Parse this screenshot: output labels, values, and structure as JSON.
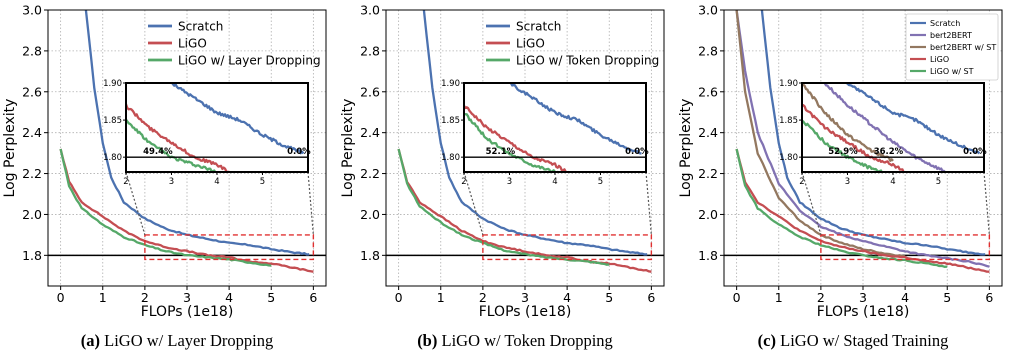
{
  "chart_data": [
    {
      "type": "line",
      "caption_letter": "(a)",
      "caption_text": "LiGO w/ Layer Dropping",
      "xlabel": "FLOPs (1e18)",
      "ylabel": "Log Perplexity",
      "xlim": [
        -0.3,
        6.3
      ],
      "ylim": [
        1.65,
        3.0
      ],
      "xticks": [
        "0",
        "1",
        "2",
        "3",
        "4",
        "5",
        "6"
      ],
      "yticks": [
        "1.8",
        "2.0",
        "2.2",
        "2.4",
        "2.6",
        "2.8",
        "3.0"
      ],
      "grid": true,
      "legend_position": "top-right",
      "reference_line_y": 1.8,
      "series": [
        {
          "name": "Scratch",
          "color": "#4c72b0",
          "points": [
            [
              0.6,
              3.0
            ],
            [
              0.8,
              2.62
            ],
            [
              1.0,
              2.35
            ],
            [
              1.2,
              2.18
            ],
            [
              1.5,
              2.06
            ],
            [
              2.0,
              1.98
            ],
            [
              2.5,
              1.93
            ],
            [
              3.0,
              1.9
            ],
            [
              3.5,
              1.88
            ],
            [
              4.0,
              1.86
            ],
            [
              4.5,
              1.85
            ],
            [
              5.0,
              1.83
            ],
            [
              5.5,
              1.815
            ],
            [
              5.9,
              1.805
            ]
          ]
        },
        {
          "name": "LiGO",
          "color": "#c44e52",
          "points": [
            [
              0.0,
              2.32
            ],
            [
              0.2,
              2.16
            ],
            [
              0.5,
              2.06
            ],
            [
              1.0,
              1.99
            ],
            [
              1.5,
              1.92
            ],
            [
              2.0,
              1.87
            ],
            [
              2.5,
              1.84
            ],
            [
              3.0,
              1.82
            ],
            [
              3.5,
              1.8
            ],
            [
              4.0,
              1.79
            ],
            [
              4.5,
              1.77
            ],
            [
              5.0,
              1.76
            ],
            [
              5.5,
              1.74
            ],
            [
              6.0,
              1.72
            ]
          ]
        },
        {
          "name": "LiGO w/ Layer Dropping",
          "color": "#55a868",
          "points": [
            [
              0.0,
              2.32
            ],
            [
              0.2,
              2.14
            ],
            [
              0.5,
              2.03
            ],
            [
              1.0,
              1.95
            ],
            [
              1.5,
              1.89
            ],
            [
              2.0,
              1.85
            ],
            [
              2.5,
              1.82
            ],
            [
              3.0,
              1.8
            ],
            [
              3.5,
              1.79
            ],
            [
              4.0,
              1.78
            ],
            [
              4.5,
              1.765
            ],
            [
              5.0,
              1.75
            ]
          ]
        }
      ],
      "highlight_box": {
        "x": [
          2.0,
          6.0
        ],
        "y": [
          1.78,
          1.9
        ]
      },
      "inset": {
        "xlim": [
          2.0,
          6.0
        ],
        "ylim": [
          1.78,
          1.9
        ],
        "xticks": [
          "2",
          "3",
          "4",
          "5"
        ],
        "yticks": [
          "1.80",
          "1.85",
          "1.90"
        ],
        "hline": 1.8,
        "annotations": [
          {
            "x": 2.7,
            "label": "49.4%"
          },
          {
            "x": 5.8,
            "label": "0.0%"
          }
        ]
      }
    },
    {
      "type": "line",
      "caption_letter": "(b)",
      "caption_text": "LiGO w/ Token Dropping",
      "xlabel": "FLOPs (1e18)",
      "ylabel": "Log Perplexity",
      "xlim": [
        -0.3,
        6.3
      ],
      "ylim": [
        1.65,
        3.0
      ],
      "xticks": [
        "0",
        "1",
        "2",
        "3",
        "4",
        "5",
        "6"
      ],
      "yticks": [
        "1.8",
        "2.0",
        "2.2",
        "2.4",
        "2.6",
        "2.8",
        "3.0"
      ],
      "grid": true,
      "legend_position": "top-right",
      "reference_line_y": 1.8,
      "series": [
        {
          "name": "Scratch",
          "color": "#4c72b0",
          "points": [
            [
              0.6,
              3.0
            ],
            [
              0.8,
              2.62
            ],
            [
              1.0,
              2.35
            ],
            [
              1.2,
              2.18
            ],
            [
              1.5,
              2.06
            ],
            [
              2.0,
              1.98
            ],
            [
              2.5,
              1.93
            ],
            [
              3.0,
              1.9
            ],
            [
              3.5,
              1.88
            ],
            [
              4.0,
              1.86
            ],
            [
              4.5,
              1.85
            ],
            [
              5.0,
              1.83
            ],
            [
              5.5,
              1.815
            ],
            [
              5.9,
              1.805
            ]
          ]
        },
        {
          "name": "LiGO",
          "color": "#c44e52",
          "points": [
            [
              0.0,
              2.32
            ],
            [
              0.2,
              2.16
            ],
            [
              0.5,
              2.06
            ],
            [
              1.0,
              1.99
            ],
            [
              1.5,
              1.92
            ],
            [
              2.0,
              1.87
            ],
            [
              2.5,
              1.84
            ],
            [
              3.0,
              1.82
            ],
            [
              3.5,
              1.8
            ],
            [
              4.0,
              1.79
            ],
            [
              4.5,
              1.77
            ],
            [
              5.0,
              1.76
            ],
            [
              5.5,
              1.74
            ],
            [
              6.0,
              1.72
            ]
          ]
        },
        {
          "name": "LiGO w/ Token Dropping",
          "color": "#55a868",
          "points": [
            [
              0.0,
              2.32
            ],
            [
              0.2,
              2.15
            ],
            [
              0.5,
              2.04
            ],
            [
              1.0,
              1.96
            ],
            [
              1.5,
              1.9
            ],
            [
              2.0,
              1.86
            ],
            [
              2.5,
              1.825
            ],
            [
              3.0,
              1.805
            ],
            [
              3.5,
              1.79
            ],
            [
              4.0,
              1.78
            ],
            [
              4.5,
              1.77
            ],
            [
              5.0,
              1.755
            ]
          ]
        }
      ],
      "highlight_box": {
        "x": [
          2.0,
          6.0
        ],
        "y": [
          1.78,
          1.9
        ]
      },
      "inset": {
        "xlim": [
          2.0,
          6.0
        ],
        "ylim": [
          1.78,
          1.9
        ],
        "xticks": [
          "2",
          "3",
          "4",
          "5"
        ],
        "yticks": [
          "1.80",
          "1.85",
          "1.90"
        ],
        "hline": 1.8,
        "annotations": [
          {
            "x": 2.8,
            "label": "52.1%"
          },
          {
            "x": 5.8,
            "label": "0.0%"
          }
        ]
      }
    },
    {
      "type": "line",
      "caption_letter": "(c)",
      "caption_text": "LiGO w/ Staged Training",
      "xlabel": "FLOPs (1e18)",
      "ylabel": "Log Perplexity",
      "xlim": [
        -0.3,
        6.3
      ],
      "ylim": [
        1.65,
        3.0
      ],
      "xticks": [
        "0",
        "1",
        "2",
        "3",
        "4",
        "5",
        "6"
      ],
      "yticks": [
        "1.8",
        "2.0",
        "2.2",
        "2.4",
        "2.6",
        "2.8",
        "3.0"
      ],
      "grid": true,
      "legend_position": "top-right",
      "reference_line_y": 1.8,
      "series": [
        {
          "name": "Scratch",
          "color": "#4c72b0",
          "points": [
            [
              0.6,
              3.0
            ],
            [
              0.8,
              2.62
            ],
            [
              1.0,
              2.35
            ],
            [
              1.2,
              2.18
            ],
            [
              1.5,
              2.06
            ],
            [
              2.0,
              1.98
            ],
            [
              2.5,
              1.93
            ],
            [
              3.0,
              1.9
            ],
            [
              3.5,
              1.88
            ],
            [
              4.0,
              1.86
            ],
            [
              4.5,
              1.85
            ],
            [
              5.0,
              1.83
            ],
            [
              5.5,
              1.815
            ],
            [
              5.9,
              1.805
            ]
          ]
        },
        {
          "name": "bert2BERT",
          "color": "#8172b2",
          "points": [
            [
              0.0,
              3.0
            ],
            [
              0.2,
              2.7
            ],
            [
              0.5,
              2.4
            ],
            [
              1.0,
              2.15
            ],
            [
              1.5,
              2.02
            ],
            [
              2.0,
              1.94
            ],
            [
              2.5,
              1.9
            ],
            [
              3.0,
              1.87
            ],
            [
              3.5,
              1.845
            ],
            [
              4.0,
              1.82
            ],
            [
              4.5,
              1.8
            ],
            [
              5.0,
              1.785
            ],
            [
              5.5,
              1.77
            ],
            [
              6.0,
              1.745
            ]
          ]
        },
        {
          "name": "bert2BERT w/ ST",
          "color": "#937860",
          "points": [
            [
              0.0,
              3.0
            ],
            [
              0.2,
              2.6
            ],
            [
              0.5,
              2.3
            ],
            [
              1.0,
              2.08
            ],
            [
              1.5,
              1.97
            ],
            [
              2.0,
              1.9
            ],
            [
              2.5,
              1.86
            ],
            [
              3.0,
              1.83
            ],
            [
              3.5,
              1.81
            ],
            [
              4.0,
              1.795
            ]
          ]
        },
        {
          "name": "LiGO",
          "color": "#c44e52",
          "points": [
            [
              0.0,
              2.32
            ],
            [
              0.2,
              2.16
            ],
            [
              0.5,
              2.06
            ],
            [
              1.0,
              1.99
            ],
            [
              1.5,
              1.92
            ],
            [
              2.0,
              1.87
            ],
            [
              2.5,
              1.84
            ],
            [
              3.0,
              1.82
            ],
            [
              3.5,
              1.8
            ],
            [
              4.0,
              1.79
            ],
            [
              4.5,
              1.77
            ],
            [
              5.0,
              1.76
            ],
            [
              5.5,
              1.74
            ],
            [
              6.0,
              1.72
            ]
          ]
        },
        {
          "name": "LiGO w/ ST",
          "color": "#55a868",
          "points": [
            [
              0.0,
              2.32
            ],
            [
              0.2,
              2.14
            ],
            [
              0.5,
              2.03
            ],
            [
              1.0,
              1.95
            ],
            [
              1.5,
              1.89
            ],
            [
              2.0,
              1.85
            ],
            [
              2.5,
              1.82
            ],
            [
              3.0,
              1.8
            ],
            [
              3.5,
              1.785
            ],
            [
              4.0,
              1.775
            ],
            [
              4.5,
              1.76
            ],
            [
              5.0,
              1.745
            ]
          ]
        }
      ],
      "highlight_box": {
        "x": [
          2.0,
          6.0
        ],
        "y": [
          1.78,
          1.9
        ]
      },
      "inset": {
        "xlim": [
          2.0,
          6.0
        ],
        "ylim": [
          1.78,
          1.9
        ],
        "xticks": [
          "2",
          "3",
          "4",
          "5"
        ],
        "yticks": [
          "1.80",
          "1.85",
          "1.90"
        ],
        "hline": 1.8,
        "annotations": [
          {
            "x": 2.9,
            "label": "52.9%"
          },
          {
            "x": 3.9,
            "label": "36.2%"
          },
          {
            "x": 5.8,
            "label": "0.0%"
          }
        ]
      }
    }
  ]
}
